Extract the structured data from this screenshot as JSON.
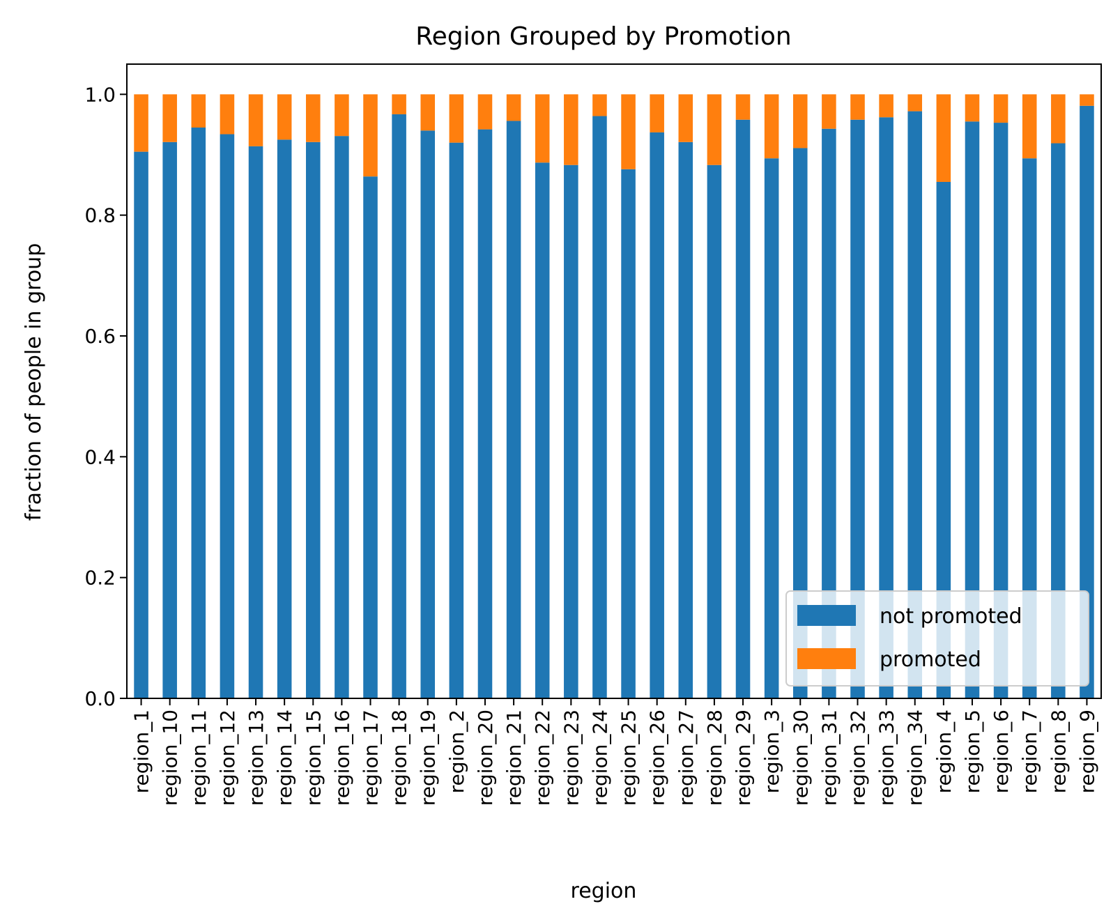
{
  "chart_data": {
    "type": "bar",
    "stacked": true,
    "title": "Region Grouped by Promotion",
    "xlabel": "region",
    "ylabel": "fraction of people in group",
    "ylim": [
      0,
      1.05
    ],
    "yticks": [
      "0.0",
      "0.2",
      "0.4",
      "0.6",
      "0.8",
      "1.0"
    ],
    "grid": false,
    "legend_position": "lower-right",
    "categories": [
      "region_1",
      "region_10",
      "region_11",
      "region_12",
      "region_13",
      "region_14",
      "region_15",
      "region_16",
      "region_17",
      "region_18",
      "region_19",
      "region_2",
      "region_20",
      "region_21",
      "region_22",
      "region_23",
      "region_24",
      "region_25",
      "region_26",
      "region_27",
      "region_28",
      "region_29",
      "region_3",
      "region_30",
      "region_31",
      "region_32",
      "region_33",
      "region_34",
      "region_4",
      "region_5",
      "region_6",
      "region_7",
      "region_8",
      "region_9"
    ],
    "series": [
      {
        "name": "not promoted",
        "color": "#1f77b4",
        "values": [
          0.905,
          0.921,
          0.945,
          0.934,
          0.914,
          0.925,
          0.921,
          0.931,
          0.864,
          0.967,
          0.94,
          0.92,
          0.942,
          0.956,
          0.887,
          0.883,
          0.964,
          0.876,
          0.937,
          0.921,
          0.883,
          0.958,
          0.894,
          0.911,
          0.943,
          0.958,
          0.962,
          0.972,
          0.855,
          0.955,
          0.953,
          0.894,
          0.919,
          0.981
        ]
      },
      {
        "name": "promoted",
        "color": "#ff7f0e",
        "values": [
          0.095,
          0.079,
          0.055,
          0.066,
          0.086,
          0.075,
          0.079,
          0.069,
          0.136,
          0.033,
          0.06,
          0.08,
          0.058,
          0.044,
          0.113,
          0.117,
          0.036,
          0.124,
          0.063,
          0.079,
          0.117,
          0.042,
          0.106,
          0.089,
          0.057,
          0.042,
          0.038,
          0.028,
          0.145,
          0.045,
          0.047,
          0.106,
          0.081,
          0.019
        ]
      }
    ]
  }
}
